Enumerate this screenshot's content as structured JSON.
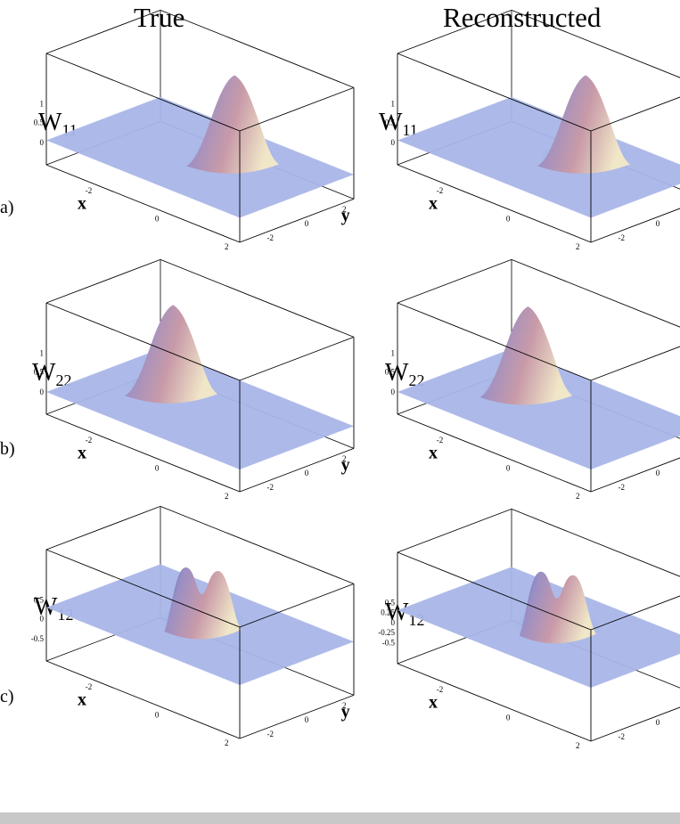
{
  "columns": {
    "left": "True",
    "right": "Reconstructed"
  },
  "rows": [
    {
      "label": "a)",
      "symbol": "W",
      "sub": "11",
      "ticks_left": [
        "1",
        "0.5",
        "0"
      ],
      "ticks_right": [
        "1",
        "0.5",
        "0"
      ]
    },
    {
      "label": "b)",
      "symbol": "W",
      "sub": "22",
      "ticks_left": [
        "1",
        "0.5",
        "0"
      ],
      "ticks_right": [
        "1",
        "0.5",
        "0"
      ]
    },
    {
      "label": "c)",
      "symbol": "W",
      "sub": "12",
      "ticks_left": [
        "0.5",
        "0",
        "-0.5"
      ],
      "ticks_right": [
        "0.5",
        "0.25",
        "0",
        "-0.25",
        "-0.5"
      ]
    }
  ],
  "axes": {
    "x": "x",
    "y": "y",
    "ticks_x": [
      "-2",
      "0",
      "2"
    ],
    "ticks_y": [
      "2",
      "0",
      "-2"
    ]
  },
  "colors": {
    "plane": "#a9b6e8",
    "peak": "#c89aa8",
    "frame": "#000000"
  }
}
